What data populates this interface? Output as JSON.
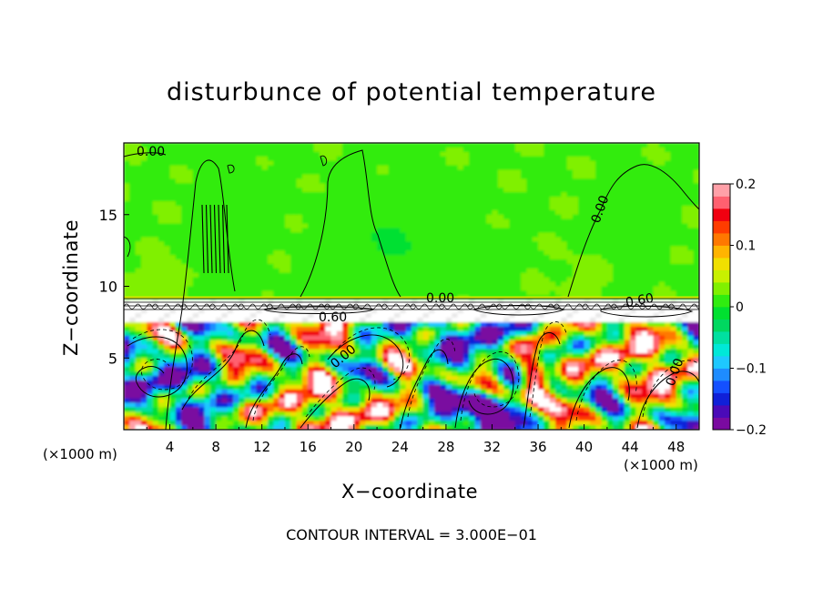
{
  "chart_data": {
    "type": "heatmap",
    "title": "disturbunce of potential temperature",
    "xlabel": "X−coordinate",
    "ylabel": "Z−coordinate",
    "x_unit": "(×1000 m)",
    "xlim": [
      0,
      50
    ],
    "ylim": [
      0,
      20
    ],
    "x_ticks": [
      "4",
      "8",
      "12",
      "16",
      "20",
      "24",
      "28",
      "32",
      "36",
      "40",
      "44",
      "48"
    ],
    "y_ticks": [
      "5",
      "10",
      "15"
    ],
    "colorbar": {
      "range": [
        -0.2,
        0.2
      ],
      "tick_labels": [
        "0.2",
        "0.1",
        "0",
        "−0.1",
        "−0.2"
      ],
      "colors": [
        "#7a0aa0",
        "#4a0ab8",
        "#1020d8",
        "#1450ff",
        "#1e8cff",
        "#1ec8ff",
        "#00e8d8",
        "#00e0a0",
        "#00d860",
        "#00e030",
        "#30ec10",
        "#80f000",
        "#c8f000",
        "#f0e000",
        "#ffb400",
        "#ff7800",
        "#ff3c00",
        "#f00010",
        "#ff6070",
        "#ffa0a8"
      ]
    },
    "contour_labels": [
      "0.00",
      "0.00",
      "0.00",
      "0.60",
      "0.00",
      "0.60",
      "0.00"
    ],
    "contour_interval_text": "CONTOUR INTERVAL = 3.000E−01"
  }
}
